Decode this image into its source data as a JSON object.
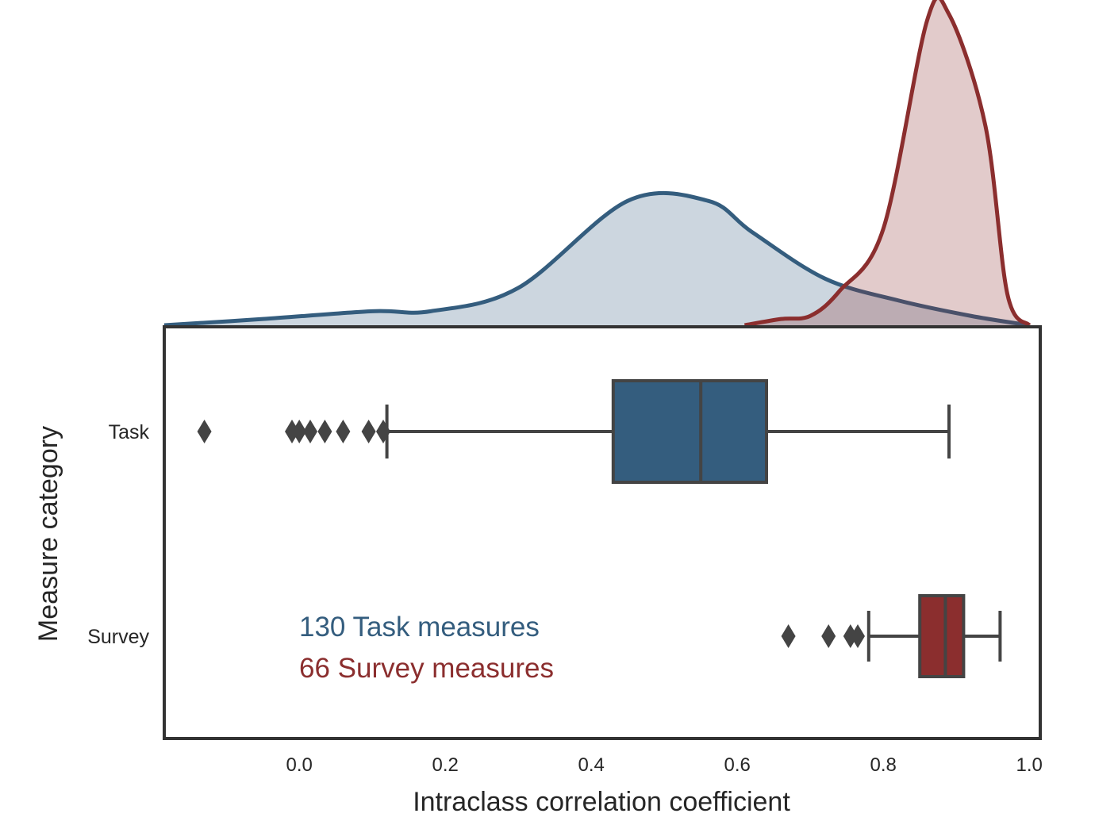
{
  "chart_data": {
    "type": "box",
    "xlabel": "Intraclass correlation coefficient",
    "ylabel": "Measure category",
    "xlim": [
      -0.185,
      1.015
    ],
    "x_ticks": [
      "0.0",
      "0.2",
      "0.4",
      "0.6",
      "0.8",
      "1.0"
    ],
    "categories": [
      "Task",
      "Survey"
    ],
    "series": [
      {
        "name": "Task",
        "color": "#345d7e",
        "box": {
          "q1": 0.43,
          "median": 0.55,
          "q3": 0.64,
          "whisker_low": 0.12,
          "whisker_high": 0.89
        },
        "outliers": [
          -0.13,
          -0.01,
          0.0,
          0.015,
          0.035,
          0.06,
          0.095,
          0.115
        ],
        "density": [
          [
            -0.185,
            0.0
          ],
          [
            -0.05,
            0.02
          ],
          [
            0.1,
            0.045
          ],
          [
            0.18,
            0.045
          ],
          [
            0.3,
            0.12
          ],
          [
            0.45,
            0.4
          ],
          [
            0.56,
            0.4
          ],
          [
            0.62,
            0.3
          ],
          [
            0.72,
            0.15
          ],
          [
            0.82,
            0.08
          ],
          [
            0.92,
            0.03
          ],
          [
            1.0,
            0.0
          ]
        ]
      },
      {
        "name": "Survey",
        "color": "#8b2e2e",
        "box": {
          "q1": 0.85,
          "median": 0.885,
          "q3": 0.91,
          "whisker_low": 0.78,
          "whisker_high": 0.96
        },
        "outliers": [
          0.67,
          0.725,
          0.755,
          0.765
        ],
        "density": [
          [
            0.61,
            0.0
          ],
          [
            0.66,
            0.02
          ],
          [
            0.7,
            0.03
          ],
          [
            0.74,
            0.11
          ],
          [
            0.8,
            0.31
          ],
          [
            0.86,
            0.98
          ],
          [
            0.89,
            1.0
          ],
          [
            0.94,
            0.64
          ],
          [
            0.97,
            0.1
          ],
          [
            1.0,
            0.0
          ]
        ]
      }
    ],
    "annotations": [
      {
        "text": "130 Task measures",
        "color": "#345d7e"
      },
      {
        "text": "66 Survey measures",
        "color": "#8b2e2e"
      }
    ]
  }
}
